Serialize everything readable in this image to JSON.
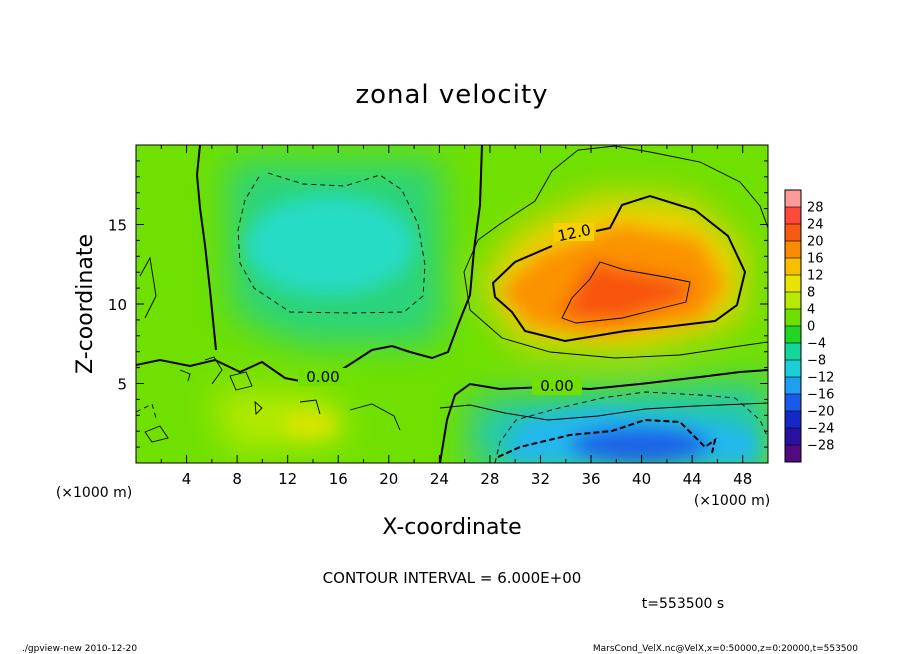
{
  "chart_data": {
    "type": "heatmap",
    "title": "zonal velocity",
    "xlabel": "X-coordinate",
    "ylabel": "Z-coordinate",
    "x_unit": "(×1000 m)",
    "y_unit": "(×1000 m)",
    "xlim": [
      0,
      50
    ],
    "ylim": [
      0,
      20
    ],
    "x_ticks": [
      4,
      8,
      12,
      16,
      20,
      24,
      28,
      32,
      36,
      40,
      44,
      48
    ],
    "y_ticks": [
      5,
      10,
      15
    ],
    "colorbar": {
      "levels": [
        28,
        24,
        20,
        16,
        12,
        8,
        4,
        0,
        -4,
        -8,
        -12,
        -16,
        -20,
        -24,
        -28
      ],
      "colors": [
        "#ff9a9a",
        "#ff4a3a",
        "#f95a12",
        "#fa8a00",
        "#f8be00",
        "#e7e400",
        "#b6ea00",
        "#6ce000",
        "#22d424",
        "#14d69a",
        "#1ad0d8",
        "#209ef0",
        "#1a5aea",
        "#1428c8",
        "#2a10a2",
        "#520a80"
      ]
    },
    "contour_interval": 6.0,
    "contour_labels": [
      {
        "value": "12.0",
        "x": 32.5,
        "z": 14.6
      },
      {
        "value": "0.00",
        "x": 15.0,
        "z": 5.4
      },
      {
        "value": "0.00",
        "x": 33.5,
        "z": 4.9
      }
    ],
    "features": [
      {
        "name": "jet maximum",
        "x": 38.5,
        "z": 11.0,
        "value": 20
      },
      {
        "name": "upper negative region",
        "x": 14.5,
        "z": 13.5,
        "value": -6
      },
      {
        "name": "surface negative region",
        "x": 39.0,
        "z": 1.3,
        "value": -15
      },
      {
        "name": "lower positive patch",
        "x": 14.0,
        "z": 2.2,
        "value": 8
      }
    ]
  },
  "labels": {
    "contour_info": "CONTOUR INTERVAL = 6.000E+00",
    "time": "t=553500  s",
    "footer_left": "./gpview-new  2010-12-20",
    "footer_right": "MarsCond_VelX.nc@VelX,x=0:50000,z=0:20000,t=553500"
  }
}
